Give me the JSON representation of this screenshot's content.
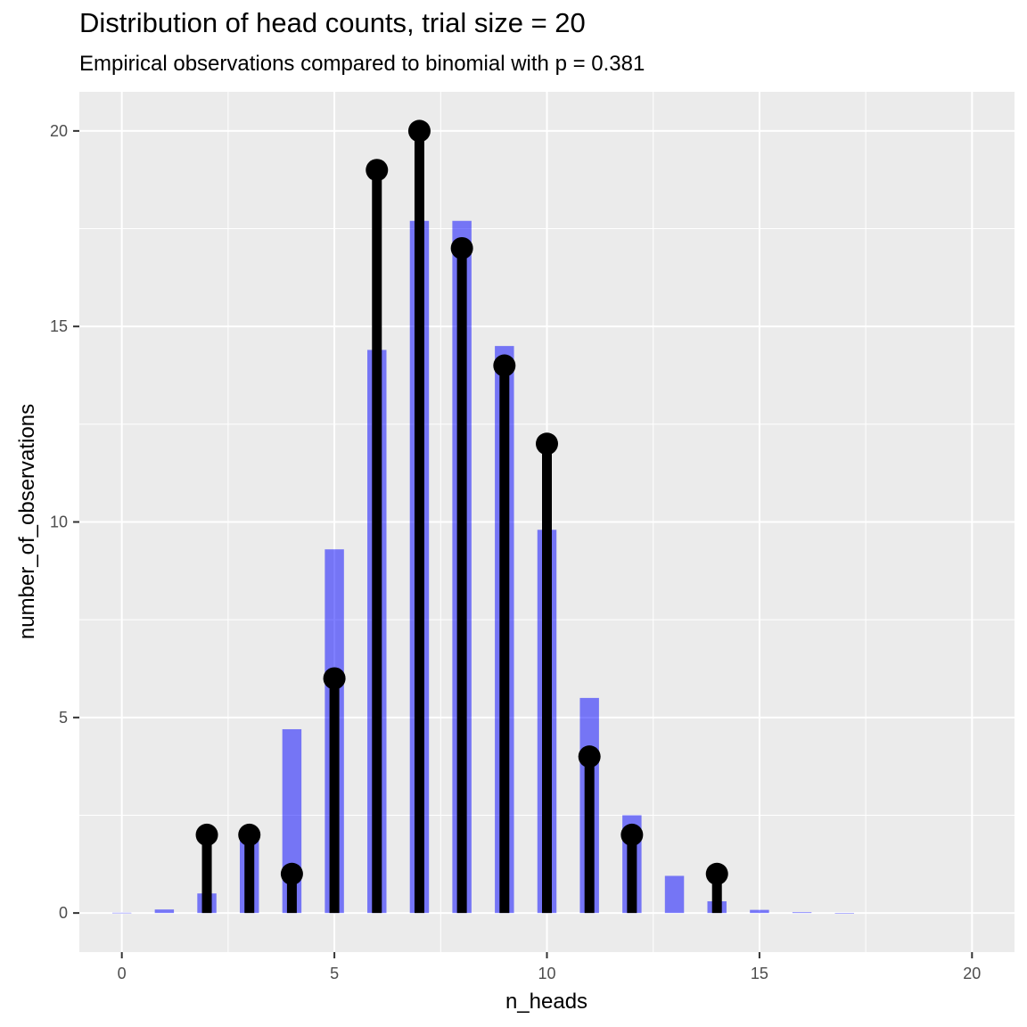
{
  "chart_data": {
    "type": "bar",
    "title": "Distribution of head counts, trial size = 20",
    "subtitle": "Empirical observations compared to binomial with p = 0.381",
    "xlabel": "n_heads",
    "ylabel": "number_of_observations",
    "xlim": [
      -1,
      21
    ],
    "ylim": [
      -1,
      21
    ],
    "x_ticks": [
      0,
      5,
      10,
      15,
      20
    ],
    "y_ticks": [
      0,
      5,
      10,
      15,
      20
    ],
    "grid": true,
    "series": [
      {
        "kind": "bar",
        "color": "#0000ff",
        "opacity": 0.5,
        "x": [
          0,
          1,
          2,
          3,
          4,
          5,
          6,
          7,
          8,
          9,
          10,
          11,
          12,
          13,
          14,
          15,
          16,
          17,
          18,
          19,
          20
        ],
        "values": [
          0.007,
          0.09,
          0.5,
          1.9,
          4.7,
          9.3,
          14.4,
          17.7,
          17.7,
          14.5,
          9.8,
          5.5,
          2.5,
          0.95,
          0.3,
          0.08,
          0.02,
          0.003,
          0,
          0,
          0
        ]
      },
      {
        "kind": "lollipop",
        "color": "#000000",
        "x": [
          2,
          3,
          4,
          5,
          6,
          7,
          8,
          9,
          10,
          11,
          12,
          14
        ],
        "values": [
          2,
          2,
          1,
          6,
          19,
          20,
          17,
          14,
          12,
          4,
          2,
          1
        ]
      }
    ]
  }
}
